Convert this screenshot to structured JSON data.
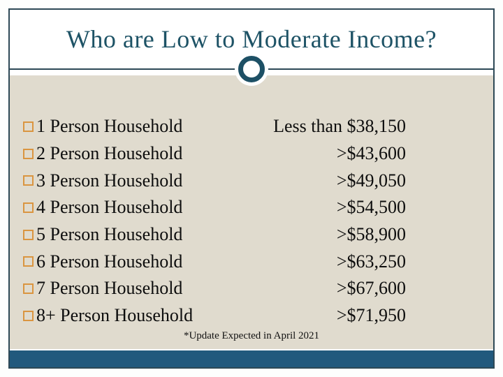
{
  "slide": {
    "title": "Who are Low to Moderate Income?",
    "footnote": "*Update Expected in April 2021"
  },
  "table": {
    "rows": [
      {
        "household": "1 Person Household",
        "income": "Less than $38,150"
      },
      {
        "household": "2 Person Household",
        "income": ">$43,600"
      },
      {
        "household": "3 Person Household",
        "income": ">$49,050"
      },
      {
        "household": "4 Person Household",
        "income": ">$54,500"
      },
      {
        "household": "5 Person Household",
        "income": ">$58,900"
      },
      {
        "household": "6 Person Household",
        "income": ">$63,250"
      },
      {
        "household": "7 Person Household",
        "income": ">$67,600"
      },
      {
        "household": "8+ Person Household",
        "income": ">$71,950"
      }
    ]
  },
  "icons": {
    "bullet": "square-outline",
    "ornament": "circle-ring"
  },
  "colors": {
    "frame_border": "#2d4956",
    "title_text": "#1e5366",
    "panel_background": "#e0dbce",
    "bottom_bar": "#21597d",
    "bullet_orange": "#da9540",
    "body_text": "#0d0d0d"
  }
}
